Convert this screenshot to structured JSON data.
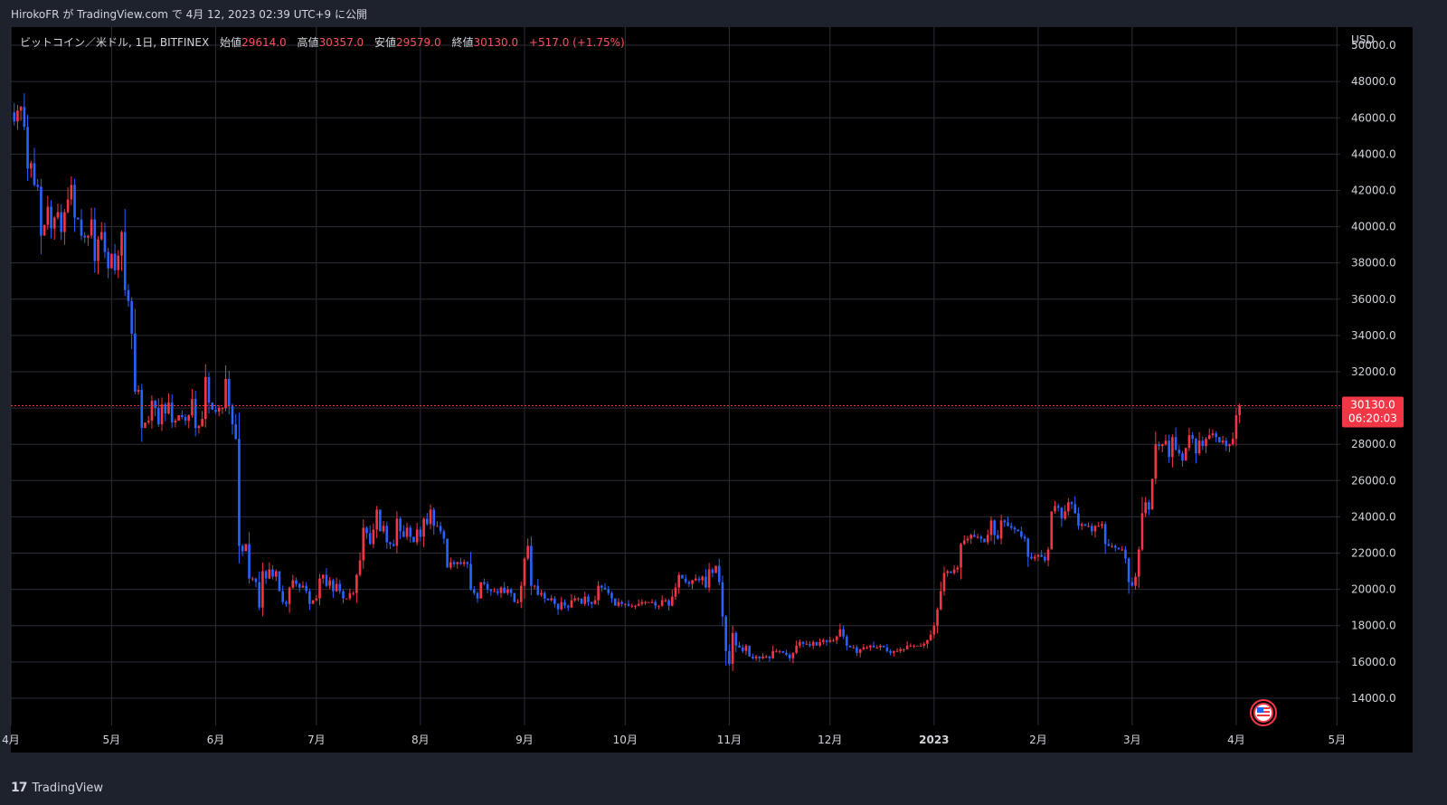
{
  "header": {
    "author": "HirokoFR",
    "text": "が TradingView.com で 4月 12, 2023 02:39 UTC+9 に公開"
  },
  "legend": {
    "symbol": "ビットコイン／米ドル, 1日, BITFINEX",
    "open_label": "始値",
    "open": "29614.0",
    "high_label": "高値",
    "high": "30357.0",
    "low_label": "安値",
    "low": "29579.0",
    "close_label": "終値",
    "close": "30130.0",
    "change": "+517.0 (+1.75%)"
  },
  "price_axis": {
    "currency": "USD",
    "last_price": "30130.0",
    "countdown": "06:20:03"
  },
  "footer": {
    "brand": "TradingView",
    "logo": "17"
  },
  "colors": {
    "background": "#000000",
    "frame": "#1e222d",
    "grid": "#2a2e39",
    "up": "#f23645",
    "down": "#2962ff",
    "text": "#d1d4dc",
    "price_line": "#f23645"
  },
  "chart_data": {
    "type": "candlestick",
    "symbol": "BTC/USD",
    "exchange": "BITFINEX",
    "interval": "1D",
    "ylim": [
      12500,
      51000
    ],
    "xlim": [
      "2022-04-01",
      "2023-05-02"
    ],
    "y_ticks": [
      "14000.0",
      "16000.0",
      "18000.0",
      "20000.0",
      "22000.0",
      "24000.0",
      "26000.0",
      "28000.0",
      "30000.0",
      "32000.0",
      "34000.0",
      "36000.0",
      "38000.0",
      "40000.0",
      "42000.0",
      "44000.0",
      "46000.0",
      "48000.0",
      "50000.0"
    ],
    "x_ticks": [
      {
        "date": "2022-04-01",
        "label": "4月"
      },
      {
        "date": "2022-05-01",
        "label": "5月"
      },
      {
        "date": "2022-06-01",
        "label": "6月"
      },
      {
        "date": "2022-07-01",
        "label": "7月"
      },
      {
        "date": "2022-08-01",
        "label": "8月"
      },
      {
        "date": "2022-09-01",
        "label": "9月"
      },
      {
        "date": "2022-10-01",
        "label": "10月"
      },
      {
        "date": "2022-11-01",
        "label": "11月"
      },
      {
        "date": "2022-12-01",
        "label": "12月"
      },
      {
        "date": "2023-01-01",
        "label": "2023"
      },
      {
        "date": "2023-02-01",
        "label": "2月"
      },
      {
        "date": "2023-03-01",
        "label": "3月"
      },
      {
        "date": "2023-04-01",
        "label": "4月"
      },
      {
        "date": "2023-05-01",
        "label": "5月"
      }
    ],
    "start_date": "2022-04-01",
    "closes": [
      46300,
      45800,
      46400,
      46600,
      45500,
      43200,
      43500,
      42300,
      42200,
      39500,
      40100,
      41100,
      39900,
      40500,
      40800,
      39700,
      40800,
      41500,
      42300,
      40500,
      40400,
      39500,
      39400,
      39500,
      40400,
      38100,
      39300,
      39700,
      38600,
      37700,
      38500,
      37600,
      38400,
      39700,
      36500,
      35900,
      34100,
      30900,
      31000,
      28900,
      29200,
      29300,
      30400,
      30000,
      29100,
      30200,
      29700,
      30300,
      29200,
      29300,
      29600,
      29500,
      29300,
      29600,
      30500,
      28900,
      29000,
      29400,
      31700,
      30300,
      29900,
      29800,
      30000,
      30000,
      31600,
      30100,
      29100,
      28300,
      22400,
      22100,
      22500,
      20600,
      20600,
      20400,
      19000,
      21000,
      20600,
      21100,
      20700,
      21000,
      19900,
      19300,
      19200,
      20100,
      20500,
      20300,
      20100,
      20200,
      19900,
      19200,
      19400,
      19500,
      20600,
      20800,
      20200,
      20500,
      19900,
      20300,
      19900,
      19500,
      19500,
      19800,
      19800,
      20800,
      21600,
      23400,
      23100,
      22500,
      23300,
      24400,
      23200,
      23500,
      22600,
      22500,
      22400,
      23900,
      23200,
      22900,
      23400,
      22900,
      22600,
      23300,
      22900,
      23900,
      23600,
      24400,
      23500,
      23500,
      23200,
      22800,
      21200,
      21500,
      21400,
      21500,
      21400,
      21500,
      21400,
      20000,
      19800,
      19500,
      20400,
      20300,
      20000,
      19900,
      19900,
      19800,
      20100,
      19800,
      20000,
      19800,
      19300,
      19300,
      20200,
      21700,
      22400,
      20200,
      20200,
      19700,
      19800,
      19500,
      19400,
      19500,
      19200,
      18900,
      19300,
      19100,
      19000,
      19400,
      19500,
      19500,
      19200,
      19600,
      19300,
      19200,
      19400,
      20200,
      20100,
      20000,
      19800,
      19500,
      19100,
      19300,
      19200,
      19200,
      19100,
      19100,
      19100,
      19200,
      19300,
      19300,
      19300,
      19300,
      19100,
      19100,
      19400,
      19400,
      19100,
      19600,
      20100,
      20800,
      20600,
      20400,
      20300,
      20500,
      20600,
      20500,
      20700,
      20100,
      21100,
      20900,
      21300,
      20400,
      18500,
      16600,
      15900,
      17600,
      16900,
      16800,
      16600,
      16900,
      16300,
      16200,
      16300,
      16200,
      16300,
      16300,
      16200,
      16600,
      16600,
      16600,
      16500,
      16400,
      16200,
      16500,
      16900,
      17100,
      17000,
      17000,
      16900,
      17100,
      16900,
      17100,
      17200,
      17100,
      17200,
      17200,
      17400,
      17800,
      17400,
      16900,
      16800,
      16800,
      16500,
      16700,
      16800,
      16800,
      16900,
      16800,
      16800,
      16900,
      16800,
      16600,
      16500,
      16600,
      16600,
      16700,
      16700,
      16900,
      16900,
      16900,
      16900,
      16900,
      17000,
      17200,
      17500,
      18000,
      18900,
      19900,
      20900,
      21000,
      20900,
      21100,
      21200,
      22500,
      22700,
      22800,
      23000,
      22900,
      22900,
      22800,
      22600,
      23000,
      23800,
      23000,
      22800,
      23800,
      23700,
      23500,
      23400,
      23300,
      23200,
      22900,
      22800,
      21800,
      21700,
      21800,
      21900,
      21800,
      21600,
      22200,
      24300,
      24600,
      24500,
      23900,
      24300,
      24800,
      24700,
      24200,
      23500,
      23600,
      23500,
      23500,
      23200,
      23500,
      23500,
      23600,
      22500,
      22400,
      22400,
      22300,
      22200,
      22200,
      21700,
      20400,
      20200,
      20700,
      22200,
      24200,
      24800,
      24400,
      26100,
      28000,
      27900,
      28000,
      28200,
      27300,
      28400,
      27700,
      27500,
      27100,
      27800,
      28500,
      28300,
      27500,
      28200,
      27900,
      28300,
      28500,
      28600,
      28400,
      28100,
      28200,
      27900,
      28000,
      28300,
      29600,
      30130
    ]
  }
}
